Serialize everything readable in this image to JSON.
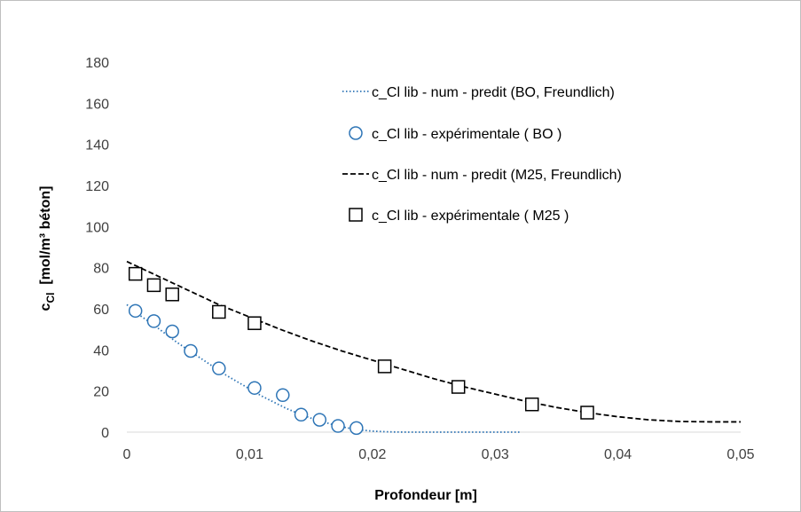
{
  "chart_data": {
    "type": "scatter",
    "title": "",
    "xlabel": "Profondeur [m]",
    "ylabel_main": "c",
    "ylabel_sub": "Cl",
    "ylabel_rest": "  [mol/m³ béton]",
    "xlim": [
      0,
      0.05
    ],
    "ylim": [
      0,
      180
    ],
    "xticks": [
      0,
      0.01,
      0.02,
      0.03,
      0.04,
      0.05
    ],
    "xtick_labels": [
      "0",
      "0,01",
      "0,02",
      "0,03",
      "0,04",
      "0,05"
    ],
    "yticks": [
      0,
      20,
      40,
      60,
      80,
      100,
      120,
      140,
      160,
      180
    ],
    "ytick_labels": [
      "0",
      "20",
      "40",
      "60",
      "80",
      "100",
      "120",
      "140",
      "160",
      "180"
    ],
    "grid": false,
    "legend_position": "top-right",
    "series": [
      {
        "name": "c_Cl lib - num - predit (BO, Freundlich)",
        "kind": "line",
        "style": "dotted",
        "color": "#2e75b6",
        "x": [
          0,
          0.001,
          0.002,
          0.003,
          0.004,
          0.005,
          0.006,
          0.007,
          0.008,
          0.009,
          0.01,
          0.011,
          0.012,
          0.013,
          0.014,
          0.015,
          0.016,
          0.017,
          0.018,
          0.019,
          0.02,
          0.021,
          0.022,
          0.023,
          0.024,
          0.025,
          0.026,
          0.028,
          0.03,
          0.032
        ],
        "y": [
          62,
          57,
          53,
          48.5,
          44,
          40,
          36,
          32,
          28,
          24.5,
          21,
          17.5,
          14.5,
          11.5,
          9,
          6.8,
          5,
          3.3,
          2,
          1.1,
          0.5,
          0.2,
          0.05,
          0,
          0,
          0,
          0,
          0,
          0,
          0
        ]
      },
      {
        "name": "c_Cl lib - expérimentale ( BO )",
        "kind": "marker",
        "marker": "circle",
        "color": "#2e75b6",
        "x": [
          0.0007,
          0.0022,
          0.0037,
          0.0052,
          0.0075,
          0.0104,
          0.0127,
          0.0142,
          0.0157,
          0.0172,
          0.0187
        ],
        "y": [
          59,
          54,
          49,
          39.5,
          31,
          21.5,
          18,
          8.5,
          6,
          3,
          2
        ]
      },
      {
        "name": "c_Cl lib - num - predit (M25, Freundlich)",
        "kind": "line",
        "style": "dashed",
        "color": "#000000",
        "x": [
          0,
          0.0025,
          0.005,
          0.0075,
          0.01,
          0.0125,
          0.015,
          0.0175,
          0.02,
          0.0225,
          0.025,
          0.0275,
          0.03,
          0.0325,
          0.035,
          0.0375,
          0.04,
          0.0425,
          0.045,
          0.0475,
          0.05
        ],
        "y": [
          83,
          76,
          69,
          62,
          56,
          50,
          44.5,
          39.5,
          35,
          30.5,
          26,
          22,
          18.5,
          15,
          12,
          9.5,
          7.5,
          6,
          5.2,
          5,
          5
        ]
      },
      {
        "name": "c_Cl lib - expérimentale ( M25 )",
        "kind": "marker",
        "marker": "square",
        "color": "#000000",
        "x": [
          0.0007,
          0.0022,
          0.0037,
          0.0075,
          0.0104,
          0.021,
          0.027,
          0.033,
          0.0375
        ],
        "y": [
          77,
          71.5,
          67,
          58.5,
          53,
          32,
          22,
          13.5,
          9.5
        ]
      }
    ]
  }
}
